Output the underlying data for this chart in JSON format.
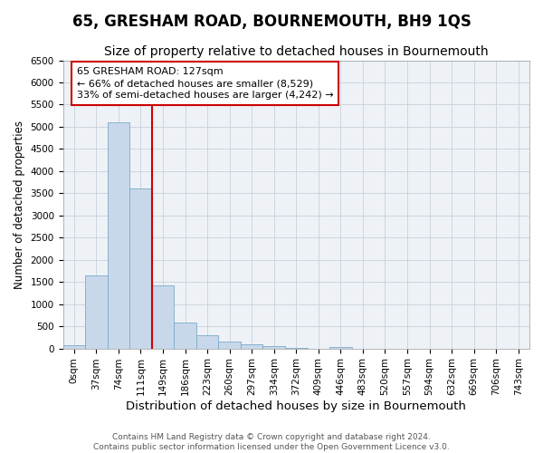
{
  "title": "65, GRESHAM ROAD, BOURNEMOUTH, BH9 1QS",
  "subtitle": "Size of property relative to detached houses in Bournemouth",
  "xlabel": "Distribution of detached houses by size in Bournemouth",
  "ylabel": "Number of detached properties",
  "footer_line1": "Contains HM Land Registry data © Crown copyright and database right 2024.",
  "footer_line2": "Contains public sector information licensed under the Open Government Licence v3.0.",
  "bar_labels": [
    "0sqm",
    "37sqm",
    "74sqm",
    "111sqm",
    "149sqm",
    "186sqm",
    "223sqm",
    "260sqm",
    "297sqm",
    "334sqm",
    "372sqm",
    "409sqm",
    "446sqm",
    "483sqm",
    "520sqm",
    "557sqm",
    "594sqm",
    "632sqm",
    "669sqm",
    "706sqm",
    "743sqm"
  ],
  "bar_values": [
    80,
    1650,
    5100,
    3600,
    1430,
    580,
    300,
    150,
    100,
    60,
    20,
    0,
    30,
    0,
    0,
    0,
    0,
    0,
    0,
    0,
    0
  ],
  "bar_color": "#c8d8ea",
  "bar_edge_color": "#7aaac8",
  "grid_color": "#c8d0da",
  "background_color": "#eef2f7",
  "ylim": [
    0,
    6500
  ],
  "yticks": [
    0,
    500,
    1000,
    1500,
    2000,
    2500,
    3000,
    3500,
    4000,
    4500,
    5000,
    5500,
    6000,
    6500
  ],
  "vline_x": 3.5,
  "vline_color": "#cc0000",
  "annotation_text": "65 GRESHAM ROAD: 127sqm\n← 66% of detached houses are smaller (8,529)\n33% of semi-detached houses are larger (4,242) →",
  "annotation_box_color": "#ffffff",
  "annotation_box_edge": "#cc0000",
  "title_fontsize": 12,
  "subtitle_fontsize": 10,
  "xlabel_fontsize": 9.5,
  "ylabel_fontsize": 8.5,
  "tick_fontsize": 7.5,
  "footer_fontsize": 6.5
}
